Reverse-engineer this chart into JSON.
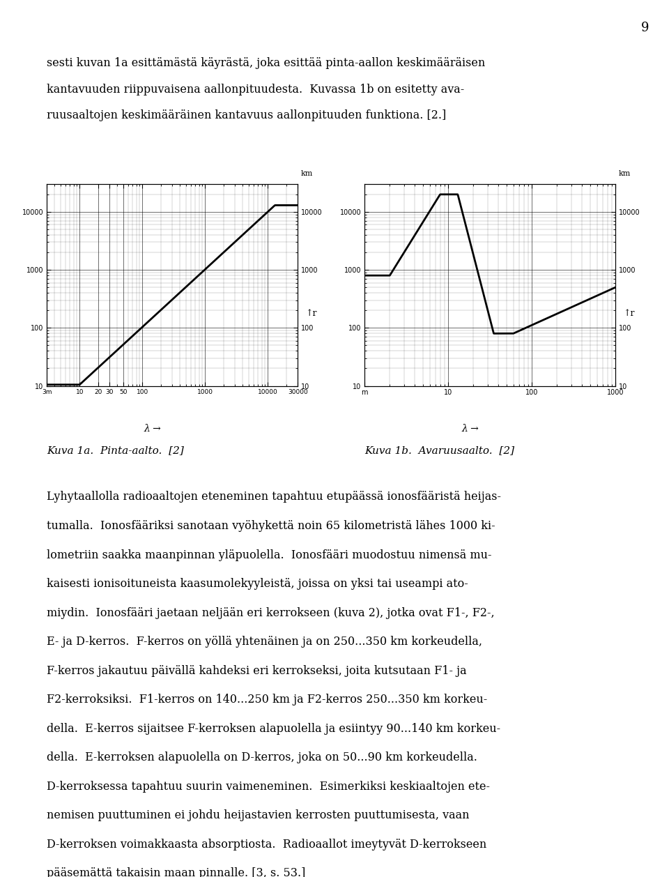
{
  "page_number": "9",
  "text_lines": [
    "sesti kuvan 1a esittämästä käyrästä, joka esittää pinta-aallon keskimääräisen",
    "kantavuuden riippuvaisena aallonpituudesta.  Kuvassa 1b on esitetty ava-",
    "ruusaaltojen keskimääräinen kantavuus aallonpituuden funktiona. [2.]"
  ],
  "caption1": "Kuva 1a.  Pinta-aalto.  [2]",
  "caption2": "Kuva 1b.  Avaruusaalto.  [2]",
  "body_text": [
    "Lyhytaallolla radioaaltojen eteneminen tapahtuu etupäässä ionosfääristä heijas-",
    "tumalla.  Ionosfääriksi sanotaan vyöhykettä noin 65 kilometristä lähes 1000 ki-",
    "lometriin saakka maanpinnan yläpuolella.  Ionosfääri muodostuu nimensä mu-",
    "kaisesti ionisoituneista kaasumolekyyleistä, joissa on yksi tai useampi ato-",
    "miydin.  Ionosfääri jaetaan neljään eri kerrokseen (kuva 2), jotka ovat F1-, F2-,",
    "E- ja D-kerros.  F-kerros on yöllä yhtenäinen ja on 250...350 km korkeudella,",
    "F-kerros jakautuu päivällä kahdeksi eri kerrokseksi, joita kutsutaan F1- ja",
    "F2-kerroksiksi.  F1-kerros on 140...250 km ja F2-kerros 250...350 km korkeu-",
    "della.  E-kerros sijaitsee F-kerroksen alapuolella ja esiintyy 90...140 km korkeu-",
    "della.  E-kerroksen alapuolella on D-kerros, joka on 50...90 km korkeudella.",
    "D-kerroksessa tapahtuu suurin vaimeneminen.  Esimerkiksi keskiaaltojen ete-",
    "nemisen puuttuminen ei johdu heijastavien kerrosten puuttumisesta, vaan",
    "D-kerroksen voimakkaasta absorptiosta.  Radioaallot imeytyvät D-kerrokseen",
    "pääsemättä takaisin maan pinnalle. [3, s. 53.]"
  ],
  "background_color": "#ffffff",
  "text_color": "#000000"
}
